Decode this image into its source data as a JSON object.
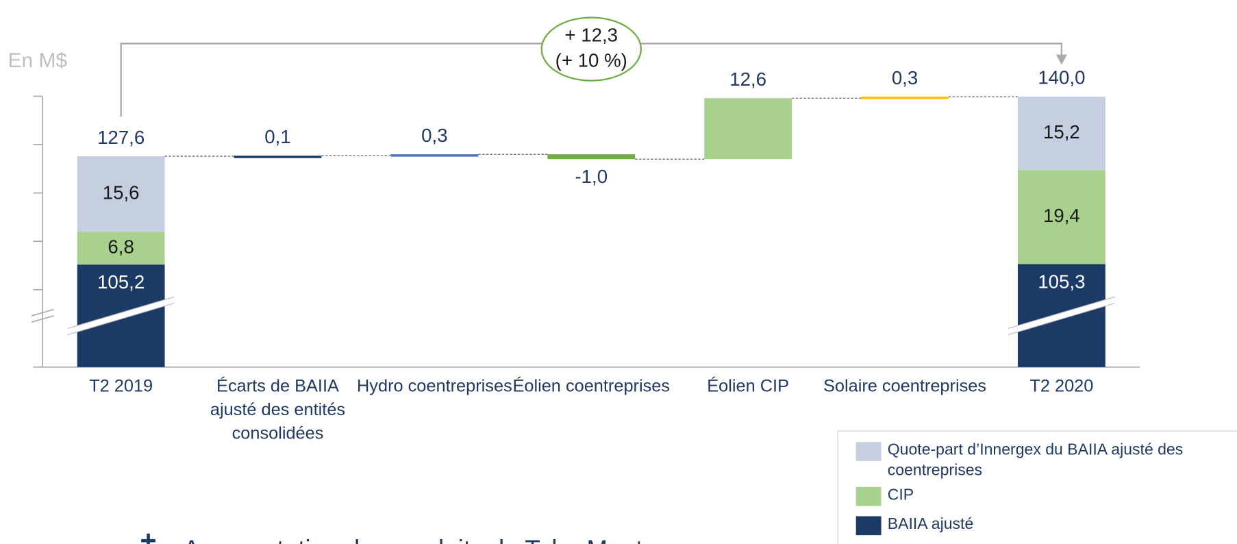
{
  "chart_data": {
    "type": "waterfall",
    "y_unit_label": "En M$",
    "categories": [
      "T2 2019",
      "Écarts de BAIIA ajusté des entités consolidées",
      "Hydro coentreprises",
      "Éolien coentreprises",
      "Éolien CIP",
      "Solaire coentreprises",
      "T2 2020"
    ],
    "series": [
      {
        "name": "Quote-part d’Innergex du BAIIA ajusté des coentreprises",
        "color": "#c5cfe0",
        "values": [
          15.6,
          null,
          null,
          null,
          null,
          null,
          15.2
        ],
        "value_labels": [
          "15,6",
          null,
          null,
          null,
          null,
          null,
          "15,2"
        ]
      },
      {
        "name": "CIP",
        "color": "#a9d18e",
        "values": [
          6.8,
          null,
          null,
          null,
          null,
          null,
          19.4
        ],
        "value_labels": [
          "6,8",
          null,
          null,
          null,
          null,
          null,
          "19,4"
        ]
      },
      {
        "name": "BAIIA ajusté",
        "color": "#1b3a66",
        "values": [
          105.2,
          null,
          null,
          null,
          null,
          null,
          105.3
        ],
        "value_labels": [
          "105,2",
          null,
          null,
          null,
          null,
          null,
          "105,3"
        ]
      }
    ],
    "deltas": {
      "values": [
        null,
        0.1,
        0.3,
        -1.0,
        12.6,
        0.3,
        null
      ],
      "value_labels": [
        null,
        "0,1",
        "0,3",
        "-1,0",
        "12,6",
        "0,3",
        null
      ],
      "colors": [
        null,
        "#1b3a66",
        "#4472c4",
        "#70ad47",
        "#a9d18e",
        "#ffc000",
        null
      ]
    },
    "totals": {
      "values": [
        127.6,
        null,
        null,
        null,
        null,
        null,
        140.0
      ],
      "value_labels": [
        "127,6",
        null,
        null,
        null,
        null,
        null,
        "140,0"
      ]
    },
    "annotation": {
      "lines": [
        "+ 12,3",
        "(+ 10 %)"
      ],
      "color": "#70ad47"
    },
    "ylim": [
      84,
      146
    ],
    "yticks": [
      100,
      110,
      120,
      130,
      140
    ],
    "ytick_labels": false,
    "axis_break": true,
    "legend": "bottom-right",
    "bullet_text": "Augmentation des produits de Toba Montrose"
  }
}
